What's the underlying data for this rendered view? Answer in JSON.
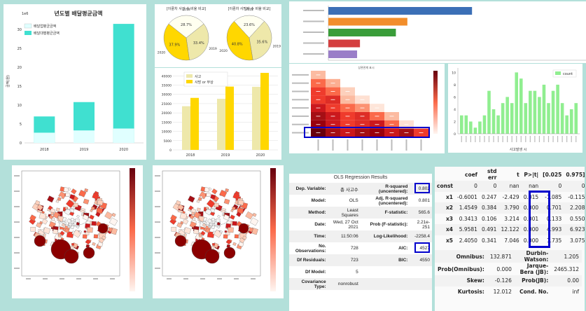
{
  "colors": {
    "background": "#b3e0da",
    "turquoise": "#40e0d0",
    "lightblue": "#e0ffff",
    "gold": "#ffd700",
    "beige": "#eee8aa",
    "highlight": "#0000cc",
    "green": "#90ee90"
  },
  "delivery_chart": {
    "title": "년도별 배달평균금액",
    "scale_label": "1e6",
    "y_label": "금액(원)",
    "legend": [
      "배달업평균금액",
      "배달대행평균금액"
    ],
    "y_ticks": [
      "0",
      "5",
      "10",
      "15",
      "20",
      "25",
      "30"
    ]
  },
  "pie_charts": [
    {
      "title": "[이륜차 사건 수 비율 비교]",
      "labels": [
        "2018",
        "2019",
        "2020"
      ],
      "values": [
        "28.7%",
        "33.4%",
        "37.9%"
      ]
    },
    {
      "title": "[이륜차 사망자 수 비율 비교]",
      "labels": [
        "2018",
        "2019",
        "2020"
      ],
      "values": [
        "23.6%",
        "35.6%",
        "40.8%"
      ]
    }
  ],
  "accident_chart": {
    "legend": [
      "사고",
      "사망 or 부상"
    ],
    "y_ticks": [
      "0",
      "5000",
      "10000",
      "15000",
      "20000",
      "25000",
      "30000",
      "35000",
      "40000"
    ]
  },
  "heatmap": {
    "title": "상관관계 표시"
  },
  "count_chart": {
    "legend": "count",
    "xlabel": "사고발생 시",
    "y_ticks": [
      "0",
      "2",
      "4",
      "6",
      "8",
      "10"
    ]
  },
  "ols": {
    "title": "OLS Regression Results",
    "rows": [
      [
        "Dep. Variable:",
        "총 사고수",
        "R-squared (uncentered):",
        "0.802"
      ],
      [
        "Model:",
        "OLS",
        "Adj. R-squared (uncentered):",
        "0.801"
      ],
      [
        "Method:",
        "Least Squares",
        "F-statistic:",
        "565.6"
      ],
      [
        "Date:",
        "Wed, 27 Oct 2021",
        "Prob (F-statistic):",
        "2.21e-251"
      ],
      [
        "Time:",
        "11:50:06",
        "Log-Likelihood:",
        "-2258.4"
      ],
      [
        "No. Observations:",
        "728",
        "AIC:",
        "4527"
      ],
      [
        "Df Residuals:",
        "723",
        "BIC:",
        "4550"
      ],
      [
        "Df Model:",
        "5",
        "",
        ""
      ],
      [
        "Covariance Type:",
        "nonrobust",
        "",
        ""
      ]
    ]
  },
  "coef_table": {
    "headers": [
      "",
      "coef",
      "std err",
      "t",
      "P>|t|",
      "[0.025",
      "0.975]"
    ],
    "rows": [
      [
        "const",
        "0",
        "0",
        "nan",
        "nan",
        "0",
        "0"
      ],
      [
        "x1",
        "-0.6001",
        "0.247",
        "-2.429",
        "0.015",
        "-1.085",
        "-0.115"
      ],
      [
        "x2",
        "1.4549",
        "0.384",
        "3.790",
        "0.000",
        "0.701",
        "2.208"
      ],
      [
        "x3",
        "0.3413",
        "0.106",
        "3.214",
        "0.001",
        "0.133",
        "0.550"
      ],
      [
        "x4",
        "5.9581",
        "0.491",
        "12.122",
        "0.000",
        "4.993",
        "6.923"
      ],
      [
        "x5",
        "2.4050",
        "0.341",
        "7.046",
        "0.000",
        "1.735",
        "3.075"
      ]
    ],
    "bottom": [
      [
        "Omnibus:",
        "132.871",
        "Durbin-Watson:",
        "1.205"
      ],
      [
        "Prob(Omnibus):",
        "0.000",
        "Jarque-Bera (JB):",
        "2465.312"
      ],
      [
        "Skew:",
        "-0.126",
        "Prob(JB):",
        "0.00"
      ],
      [
        "Kurtosis:",
        "12.012",
        "Cond. No.",
        "inf"
      ]
    ]
  },
  "chart_data": [
    {
      "type": "bar",
      "title": "년도별 배달평균금액",
      "categories": [
        "2018",
        "2019",
        "2020"
      ],
      "ylabel": "금액(원)",
      "ylim": [
        0,
        33
      ],
      "series": [
        {
          "name": "배달업평균금액",
          "values": [
            2.7,
            3.3,
            3.8
          ]
        },
        {
          "name": "배달대행평균금액",
          "values": [
            7.0,
            10.8,
            31.5
          ]
        }
      ],
      "grid": false,
      "legend": "top-left"
    },
    {
      "type": "pie",
      "title": "[이륜차 사건 수 비율 비교]",
      "categories": [
        "2018",
        "2019",
        "2020"
      ],
      "values": [
        28.7,
        33.4,
        37.9
      ]
    },
    {
      "type": "pie",
      "title": "[이륜차 사망자 수 비율 비교]",
      "categories": [
        "2018",
        "2019",
        "2020"
      ],
      "values": [
        23.6,
        35.6,
        40.8
      ]
    },
    {
      "type": "bar",
      "categories": [
        "2018",
        "2019",
        "2020"
      ],
      "ylim": [
        0,
        42000
      ],
      "series": [
        {
          "name": "사고",
          "values": [
            23600,
            27600,
            34100
          ]
        },
        {
          "name": "사망 or 부상",
          "values": [
            28100,
            34200,
            41600
          ]
        }
      ],
      "grid": true,
      "legend": "top-left"
    },
    {
      "type": "bar",
      "orientation": "horizontal",
      "values": [
        100,
        55,
        47,
        22,
        20
      ]
    },
    {
      "type": "bar",
      "series": [
        {
          "name": "count",
          "values": [
            3,
            3,
            2,
            1,
            2,
            3,
            7,
            4,
            3,
            5,
            6,
            5,
            10,
            9,
            5,
            7,
            7,
            6,
            8,
            5,
            7,
            8,
            5,
            3,
            4,
            5
          ]
        }
      ],
      "ylim": [
        0,
        10.5
      ],
      "xlabel": "사고발생 시",
      "legend": "top-right"
    }
  ]
}
